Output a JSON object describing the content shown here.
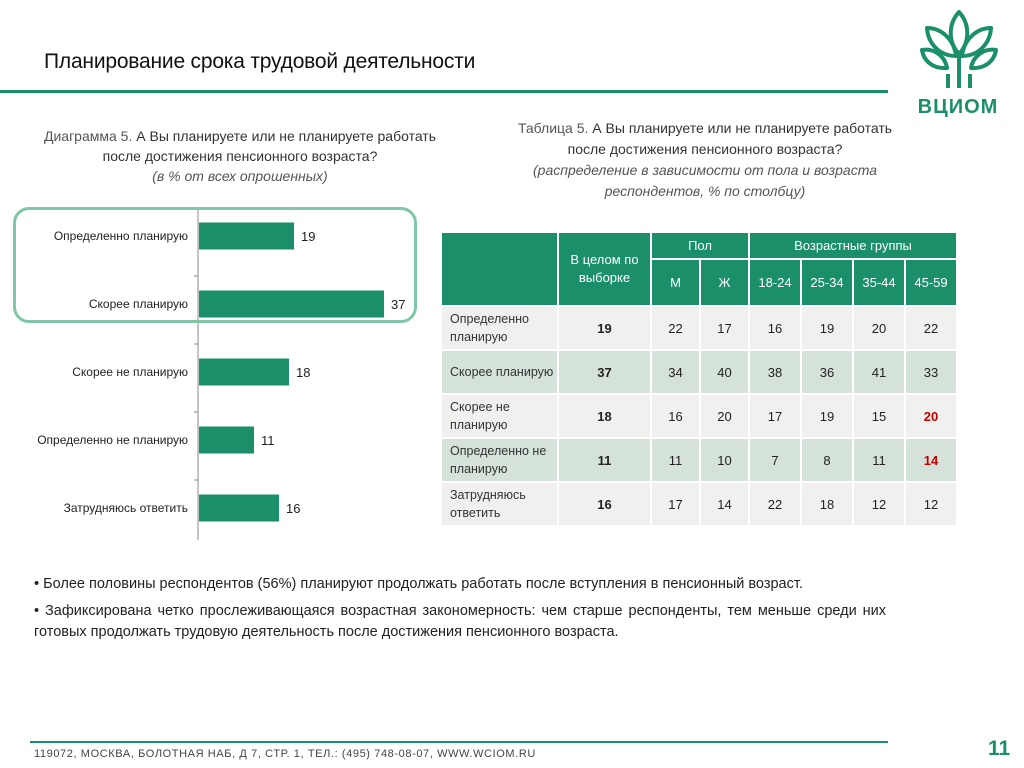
{
  "title": "Планирование срока трудовой деятельности",
  "logo_text": "ВЦИОМ",
  "chart_caption": {
    "prefix": "Диаграмма 5. ",
    "question_line1": "А Вы планируете или не планируете работать",
    "question_line2": "после достижения пенсионного возраста?",
    "subtitle": "(в % от всех опрошенных)"
  },
  "table_caption": {
    "prefix": "Таблица 5. ",
    "question_line1": "А Вы планируете или не планируете работать",
    "question_line2": "после достижения пенсионного возраста?",
    "subtitle_line1": "(распределение в зависимости от пола и возраста",
    "subtitle_line2": "респондентов, % по столбцу)"
  },
  "chart_data": {
    "type": "bar",
    "orientation": "horizontal",
    "categories": [
      "Определенно планирую",
      "Скорее планирую",
      "Скорее не планирую",
      "Определенно не планирую",
      "Затрудняюсь ответить"
    ],
    "values": [
      19,
      37,
      18,
      11,
      16
    ],
    "xlim": [
      0,
      40
    ],
    "bar_color": "#1a8f6a",
    "grid": false,
    "data_labels": true
  },
  "table": {
    "header_total": "В целом по выборке",
    "group_sex": "Пол",
    "group_age": "Возрастные группы",
    "columns": [
      "М",
      "Ж",
      "18-24",
      "25-34",
      "35-44",
      "45-59"
    ],
    "rows": [
      {
        "label": "Определенно планирую",
        "total": "19",
        "cells": [
          "22",
          "17",
          "16",
          "19",
          "20",
          "22"
        ]
      },
      {
        "label": "Скорее планирую",
        "total": "37",
        "cells": [
          "34",
          "40",
          "38",
          "36",
          "41",
          "33"
        ]
      },
      {
        "label": "Скорее не планирую",
        "total": "18",
        "cells": [
          "16",
          "20",
          "17",
          "19",
          "15",
          "20"
        ]
      },
      {
        "label": "Определенно не планирую",
        "total": "11",
        "cells": [
          "11",
          "10",
          "7",
          "8",
          "11",
          "14"
        ]
      },
      {
        "label": "Затрудняюсь ответить",
        "total": "16",
        "cells": [
          "17",
          "14",
          "22",
          "18",
          "12",
          "12"
        ]
      }
    ],
    "highlight_color": "#c00000"
  },
  "bullets": [
    "• Более половины респондентов (56%) планируют продолжать работать после вступления в пенсионный возраст.",
    "• Зафиксирована четко прослеживающаяся возрастная закономерность: чем старше респонденты, тем меньше среди них готовых продолжать трудовую деятельность после достижения пенсионного возраста."
  ],
  "footer": "119072, МОСКВА, БОЛОТНАЯ НАБ, Д 7, СТР. 1, ТЕЛ.: (495) 748-08-07, WWW.WCIOM.RU",
  "page_number": "11",
  "colors": {
    "accent": "#1a8f6a",
    "highlight_box": "#7fc7a7",
    "row_light": "#f0f0ef",
    "row_dark": "#d4e2d9",
    "emphasis": "#c00000"
  }
}
